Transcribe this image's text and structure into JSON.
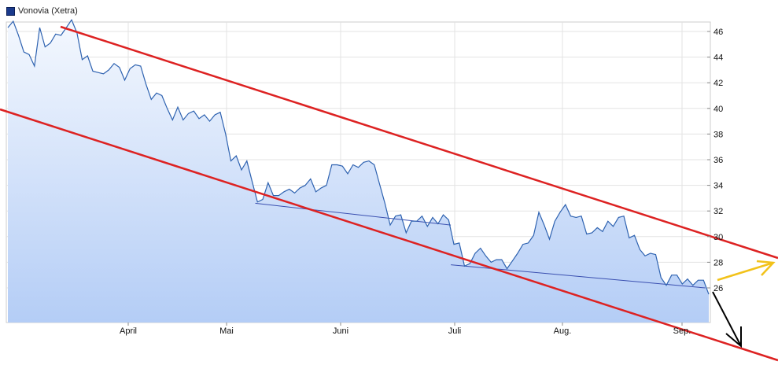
{
  "legend": {
    "label": "Vonovia (Xetra)"
  },
  "colors": {
    "price_line": "#2e62b0",
    "area_top": "#f4f8fe",
    "area_bottom": "#b4cdf6",
    "grid": "#e3e3e3",
    "channel": "#dd2222",
    "support_line": "#3a4fb0",
    "yellow_arrow": "#f2c21a",
    "black_arrow": "#000000"
  },
  "chart_data": {
    "type": "line",
    "x_axis": {
      "tick_labels": [
        "April",
        "Mai",
        "Juni",
        "Juli",
        "Aug.",
        "Sep."
      ]
    },
    "y_axis": {
      "range": [
        23,
        47.5
      ],
      "ticks": [
        26,
        28,
        30,
        32,
        34,
        36,
        38,
        40,
        42,
        44,
        46
      ]
    },
    "grid": true,
    "series": [
      {
        "name": "Vonovia (Xetra)",
        "values": [
          46.3,
          46.8,
          45.7,
          44.4,
          44.2,
          43.3,
          46.3,
          44.8,
          45.1,
          45.8,
          45.7,
          46.3,
          46.9,
          45.9,
          43.8,
          44.1,
          42.9,
          42.8,
          42.7,
          43.0,
          43.5,
          43.2,
          42.2,
          43.1,
          43.4,
          43.3,
          41.9,
          40.7,
          41.2,
          41.0,
          40.0,
          39.1,
          40.1,
          39.1,
          39.6,
          39.8,
          39.2,
          39.5,
          39.0,
          39.5,
          39.7,
          38.0,
          35.9,
          36.3,
          35.2,
          35.9,
          34.3,
          32.7,
          32.9,
          34.2,
          33.2,
          33.2,
          33.5,
          33.7,
          33.4,
          33.8,
          34.0,
          34.5,
          33.5,
          33.8,
          34.0,
          35.6,
          35.6,
          35.5,
          34.9,
          35.6,
          35.4,
          35.8,
          35.9,
          35.6,
          34.1,
          32.6,
          30.9,
          31.6,
          31.7,
          30.3,
          31.2,
          31.2,
          31.6,
          30.8,
          31.5,
          31.0,
          31.7,
          31.3,
          29.4,
          29.5,
          27.7,
          27.9,
          28.7,
          29.1,
          28.5,
          28.0,
          28.2,
          28.2,
          27.5,
          28.1,
          28.7,
          29.4,
          29.5,
          30.1,
          31.9,
          30.9,
          29.8,
          31.2,
          31.9,
          32.5,
          31.6,
          31.5,
          31.6,
          30.2,
          30.3,
          30.7,
          30.4,
          31.2,
          30.8,
          31.5,
          31.6,
          29.9,
          30.1,
          29.0,
          28.5,
          28.7,
          28.6,
          26.8,
          26.2,
          27.0,
          27.0,
          26.3,
          26.7,
          26.2,
          26.6,
          26.6,
          25.5
        ],
        "color": "#2e62b0"
      }
    ],
    "annotations": {
      "upper_channel_line": [
        [
          1.0,
          46.9
        ],
        [
          1.0,
          27.7
        ]
      ],
      "lower_channel_line": [
        [
          0.0,
          39.0
        ],
        [
          1.0,
          21.9
        ]
      ],
      "support_line_1": [
        [
          0.353,
          32.6
        ],
        [
          0.632,
          30.9
        ]
      ],
      "support_line_2": [
        [
          0.632,
          27.8
        ],
        [
          0.995,
          26.0
        ]
      ],
      "yellow_arrow": "up-right",
      "black_arrow": "down-right"
    }
  }
}
